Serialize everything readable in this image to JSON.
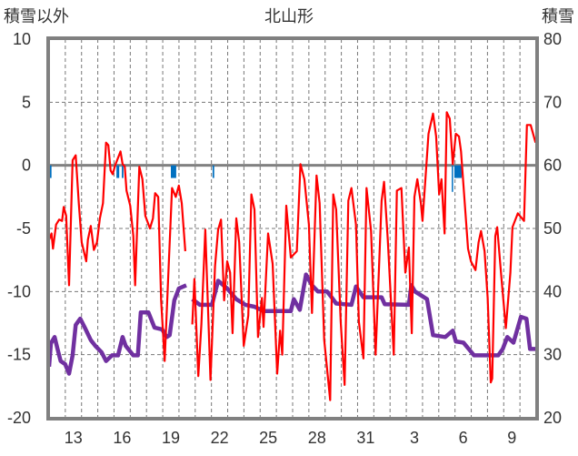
{
  "chart_data": {
    "type": "line",
    "title": "北山形",
    "ylabel": "積雪以外",
    "y2label": "積雪",
    "ylim": [
      -20,
      10
    ],
    "y2lim": [
      20,
      80
    ],
    "yticks": [
      10,
      5,
      0,
      -5,
      -10,
      -15,
      -20
    ],
    "y2ticks": [
      80,
      70,
      60,
      50,
      40,
      30,
      20
    ],
    "xlim_days": [
      0,
      30
    ],
    "x_unit": "days since the 12th, 00:00",
    "xtick_labels": [
      {
        "day": 1.5,
        "label": "13"
      },
      {
        "day": 4.5,
        "label": "16"
      },
      {
        "day": 7.5,
        "label": "19"
      },
      {
        "day": 10.5,
        "label": "22"
      },
      {
        "day": 13.5,
        "label": "25"
      },
      {
        "day": 16.5,
        "label": "28"
      },
      {
        "day": 19.5,
        "label": "31"
      },
      {
        "day": 22.5,
        "label": "3"
      },
      {
        "day": 25.5,
        "label": "6"
      },
      {
        "day": 28.5,
        "label": "9"
      }
    ],
    "grid": true,
    "colors": {
      "temperature": "#ff0000",
      "snow_depth": "#7030a0",
      "bars": "#0070c0",
      "axis": "#808080"
    },
    "series": [
      {
        "name": "temperature",
        "axis": "left",
        "points": [
          [
            0,
            -5.9
          ],
          [
            0.15,
            -5.4
          ],
          [
            0.24,
            -6.6
          ],
          [
            0.43,
            -4.7
          ],
          [
            0.62,
            -4.3
          ],
          [
            0.8,
            -4.4
          ],
          [
            0.9,
            -3.3
          ],
          [
            1.05,
            -4.0
          ],
          [
            1.23,
            -9.5
          ],
          [
            1.45,
            0.4
          ],
          [
            1.64,
            0.8
          ],
          [
            1.83,
            -3.0
          ],
          [
            2.01,
            -6.1
          ],
          [
            2.29,
            -7.6
          ],
          [
            2.39,
            -5.9
          ],
          [
            2.57,
            -4.8
          ],
          [
            2.76,
            -6.7
          ],
          [
            2.95,
            -6.1
          ],
          [
            3.13,
            -4.2
          ],
          [
            3.32,
            -3.0
          ],
          [
            3.51,
            1.8
          ],
          [
            3.65,
            1.6
          ],
          [
            3.79,
            -0.4
          ],
          [
            3.92,
            -0.7
          ],
          [
            4.07,
            0
          ],
          [
            4.4,
            1.1
          ],
          [
            4.53,
            0.1
          ],
          [
            4.66,
            -0.1
          ],
          [
            4.77,
            -2.0
          ],
          [
            5.0,
            -3.2
          ],
          [
            5.19,
            -5.6
          ],
          [
            5.3,
            -9.5
          ],
          [
            5.56,
            -0.1
          ],
          [
            5.75,
            -1.1
          ],
          [
            5.93,
            -4.0
          ],
          [
            6.21,
            -5.0
          ],
          [
            6.4,
            -4.2
          ],
          [
            6.53,
            -2.2
          ],
          [
            6.72,
            -2.5
          ],
          [
            6.9,
            -10.7
          ],
          [
            7.12,
            -15.5
          ],
          [
            7.33,
            -9.0
          ],
          [
            7.57,
            -1.8
          ],
          [
            7.8,
            -2.5
          ],
          [
            7.99,
            -1.6
          ],
          [
            8.17,
            -3.0
          ],
          [
            8.39,
            -6.8
          ],
          null,
          [
            8.82,
            -12.6
          ],
          [
            8.95,
            -9.0
          ],
          [
            9.19,
            -16.7
          ],
          [
            9.38,
            -12.6
          ],
          [
            9.62,
            -5.1
          ],
          [
            9.94,
            -17.0
          ],
          [
            10.22,
            -8.0
          ],
          [
            10.41,
            -5.1
          ],
          [
            10.59,
            -4.3
          ],
          [
            10.78,
            -10.7
          ],
          [
            10.97,
            -7.6
          ],
          [
            11.15,
            -8.5
          ],
          [
            11.3,
            -13.3
          ],
          [
            11.53,
            -4.2
          ],
          [
            11.71,
            -6.1
          ],
          [
            11.99,
            -14.3
          ],
          [
            12.27,
            -11.9
          ],
          [
            12.46,
            -2.3
          ],
          [
            12.65,
            -3.5
          ],
          [
            12.87,
            -13.6
          ],
          [
            13.11,
            -10.5
          ],
          [
            13.21,
            -12.8
          ],
          [
            13.49,
            -5.4
          ],
          [
            13.77,
            -7.8
          ],
          [
            14.05,
            -16.5
          ],
          [
            14.23,
            -13.1
          ],
          [
            14.36,
            -15.0
          ],
          [
            14.61,
            -3.2
          ],
          [
            14.89,
            -7.3
          ],
          [
            15.26,
            -6.8
          ],
          [
            15.48,
            0.1
          ],
          [
            15.72,
            -1.1
          ],
          [
            16.0,
            -4.7
          ],
          [
            16.19,
            -11.7
          ],
          [
            16.47,
            -0.8
          ],
          [
            16.66,
            -3.0
          ],
          [
            16.94,
            -13.8
          ],
          [
            17.31,
            -18.6
          ],
          [
            17.5,
            -2.3
          ],
          [
            17.68,
            -3.5
          ],
          [
            17.96,
            -12.4
          ],
          [
            18.2,
            -17.4
          ],
          [
            18.43,
            -2.8
          ],
          [
            18.62,
            -1.8
          ],
          [
            18.9,
            -4.7
          ],
          [
            19.08,
            -12.4
          ],
          [
            19.36,
            -15.3
          ],
          [
            19.55,
            -1.8
          ],
          [
            19.83,
            -5.2
          ],
          [
            20.11,
            -15.0
          ],
          [
            20.48,
            -2.8
          ],
          [
            20.63,
            -1.3
          ],
          [
            20.86,
            -5.9
          ],
          [
            21.23,
            -15.0
          ],
          [
            21.42,
            -2.0
          ],
          [
            21.7,
            -1.8
          ],
          [
            21.94,
            -8.5
          ],
          [
            22.16,
            -6.5
          ],
          [
            22.34,
            -13.3
          ],
          [
            22.5,
            -2.5
          ],
          [
            22.68,
            -1.1
          ],
          [
            22.9,
            -3.0
          ],
          [
            23.0,
            -4.4
          ],
          [
            23.18,
            -1.1
          ],
          [
            23.37,
            2.5
          ],
          [
            23.65,
            4.1
          ],
          [
            23.84,
            2.3
          ],
          [
            24.02,
            -2.3
          ],
          [
            24.17,
            -1.1
          ],
          [
            24.36,
            -5.4
          ],
          [
            24.49,
            4.2
          ],
          [
            24.68,
            3.7
          ],
          [
            24.86,
            0.1
          ],
          [
            25.05,
            2.5
          ],
          [
            25.24,
            2.3
          ],
          [
            25.37,
            1.1
          ],
          [
            25.52,
            -1.6
          ],
          [
            25.8,
            -6.6
          ],
          [
            25.98,
            -7.6
          ],
          [
            26.26,
            -8.3
          ],
          [
            26.45,
            -6.1
          ],
          [
            26.6,
            -5.2
          ],
          [
            26.82,
            -6.8
          ],
          [
            27.01,
            -10.5
          ],
          [
            27.2,
            -17.2
          ],
          [
            27.29,
            -16.9
          ],
          [
            27.48,
            -5.6
          ],
          [
            27.6,
            -4.9
          ],
          [
            27.85,
            -8.8
          ],
          [
            28.13,
            -12.9
          ],
          [
            28.41,
            -8.5
          ],
          [
            28.54,
            -4.9
          ],
          [
            28.87,
            -3.8
          ],
          [
            29.25,
            -4.4
          ],
          [
            29.43,
            3.2
          ],
          [
            29.66,
            3.2
          ],
          [
            29.96,
            1.8
          ]
        ]
      },
      {
        "name": "snow_depth",
        "axis": "right",
        "points": [
          [
            0,
            28.1
          ],
          [
            0.11,
            31.8
          ],
          [
            0.34,
            32.8
          ],
          [
            0.52,
            30.9
          ],
          [
            0.71,
            29.0
          ],
          [
            0.99,
            28.5
          ],
          [
            1.23,
            27.0
          ],
          [
            1.45,
            29.9
          ],
          [
            1.64,
            34.7
          ],
          [
            1.92,
            35.7
          ],
          [
            2.2,
            34.3
          ],
          [
            2.57,
            32.3
          ],
          [
            2.85,
            31.4
          ],
          [
            3.23,
            30.4
          ],
          [
            3.51,
            29.0
          ],
          [
            3.88,
            29.9
          ],
          [
            4.25,
            29.9
          ],
          [
            4.53,
            32.8
          ],
          [
            4.72,
            31.4
          ],
          [
            5.19,
            29.9
          ],
          [
            5.47,
            29.9
          ],
          [
            5.65,
            36.7
          ],
          [
            6.12,
            36.7
          ],
          [
            6.49,
            34.3
          ],
          [
            6.96,
            34.0
          ],
          [
            7.24,
            32.8
          ],
          [
            7.43,
            33.1
          ],
          [
            7.71,
            38.6
          ],
          [
            7.99,
            40.5
          ],
          [
            8.45,
            41.0
          ],
          null,
          [
            8.82,
            38.8
          ],
          [
            9.29,
            37.9
          ],
          [
            10.03,
            37.9
          ],
          [
            10.41,
            41.7
          ],
          [
            10.97,
            40.5
          ],
          [
            11.53,
            38.8
          ],
          [
            12.09,
            37.9
          ],
          [
            12.65,
            37.6
          ],
          [
            13.21,
            36.9
          ],
          [
            14.89,
            36.9
          ],
          [
            15.07,
            38.8
          ],
          [
            15.44,
            37.1
          ],
          [
            15.82,
            42.7
          ],
          [
            16.19,
            41.0
          ],
          [
            16.56,
            40.0
          ],
          [
            17.12,
            40.0
          ],
          [
            17.4,
            39.1
          ],
          [
            17.68,
            38.1
          ],
          [
            18.62,
            37.9
          ],
          [
            18.9,
            40.8
          ],
          [
            19.36,
            39.1
          ],
          [
            20.48,
            39.1
          ],
          [
            20.67,
            38.0
          ],
          [
            22.16,
            37.9
          ],
          [
            22.31,
            41.0
          ],
          [
            22.54,
            40.0
          ],
          [
            23.28,
            38.8
          ],
          [
            23.65,
            33.1
          ],
          [
            24.4,
            32.8
          ],
          [
            24.86,
            33.8
          ],
          [
            25.05,
            32.1
          ],
          [
            25.52,
            31.9
          ],
          [
            26.17,
            29.9
          ],
          [
            27.66,
            29.9
          ],
          [
            27.94,
            30.9
          ],
          [
            28.22,
            32.8
          ],
          [
            28.6,
            31.9
          ],
          [
            29.06,
            36.0
          ],
          [
            29.4,
            35.7
          ],
          [
            29.62,
            30.9
          ],
          [
            29.99,
            30.9
          ]
        ]
      },
      {
        "name": "bars",
        "axis": "left",
        "type": "bar",
        "points": [
          [
            0.05,
            0.1,
            -1.0
          ],
          [
            4.15,
            0.17,
            -1.0
          ],
          [
            4.48,
            0.1,
            -1.0
          ],
          [
            7.5,
            0.33,
            -1.0
          ],
          [
            10.07,
            0.1,
            -1.0
          ],
          [
            24.8,
            0.06,
            -2.1
          ],
          [
            24.96,
            0.45,
            -1.0
          ]
        ]
      }
    ]
  }
}
